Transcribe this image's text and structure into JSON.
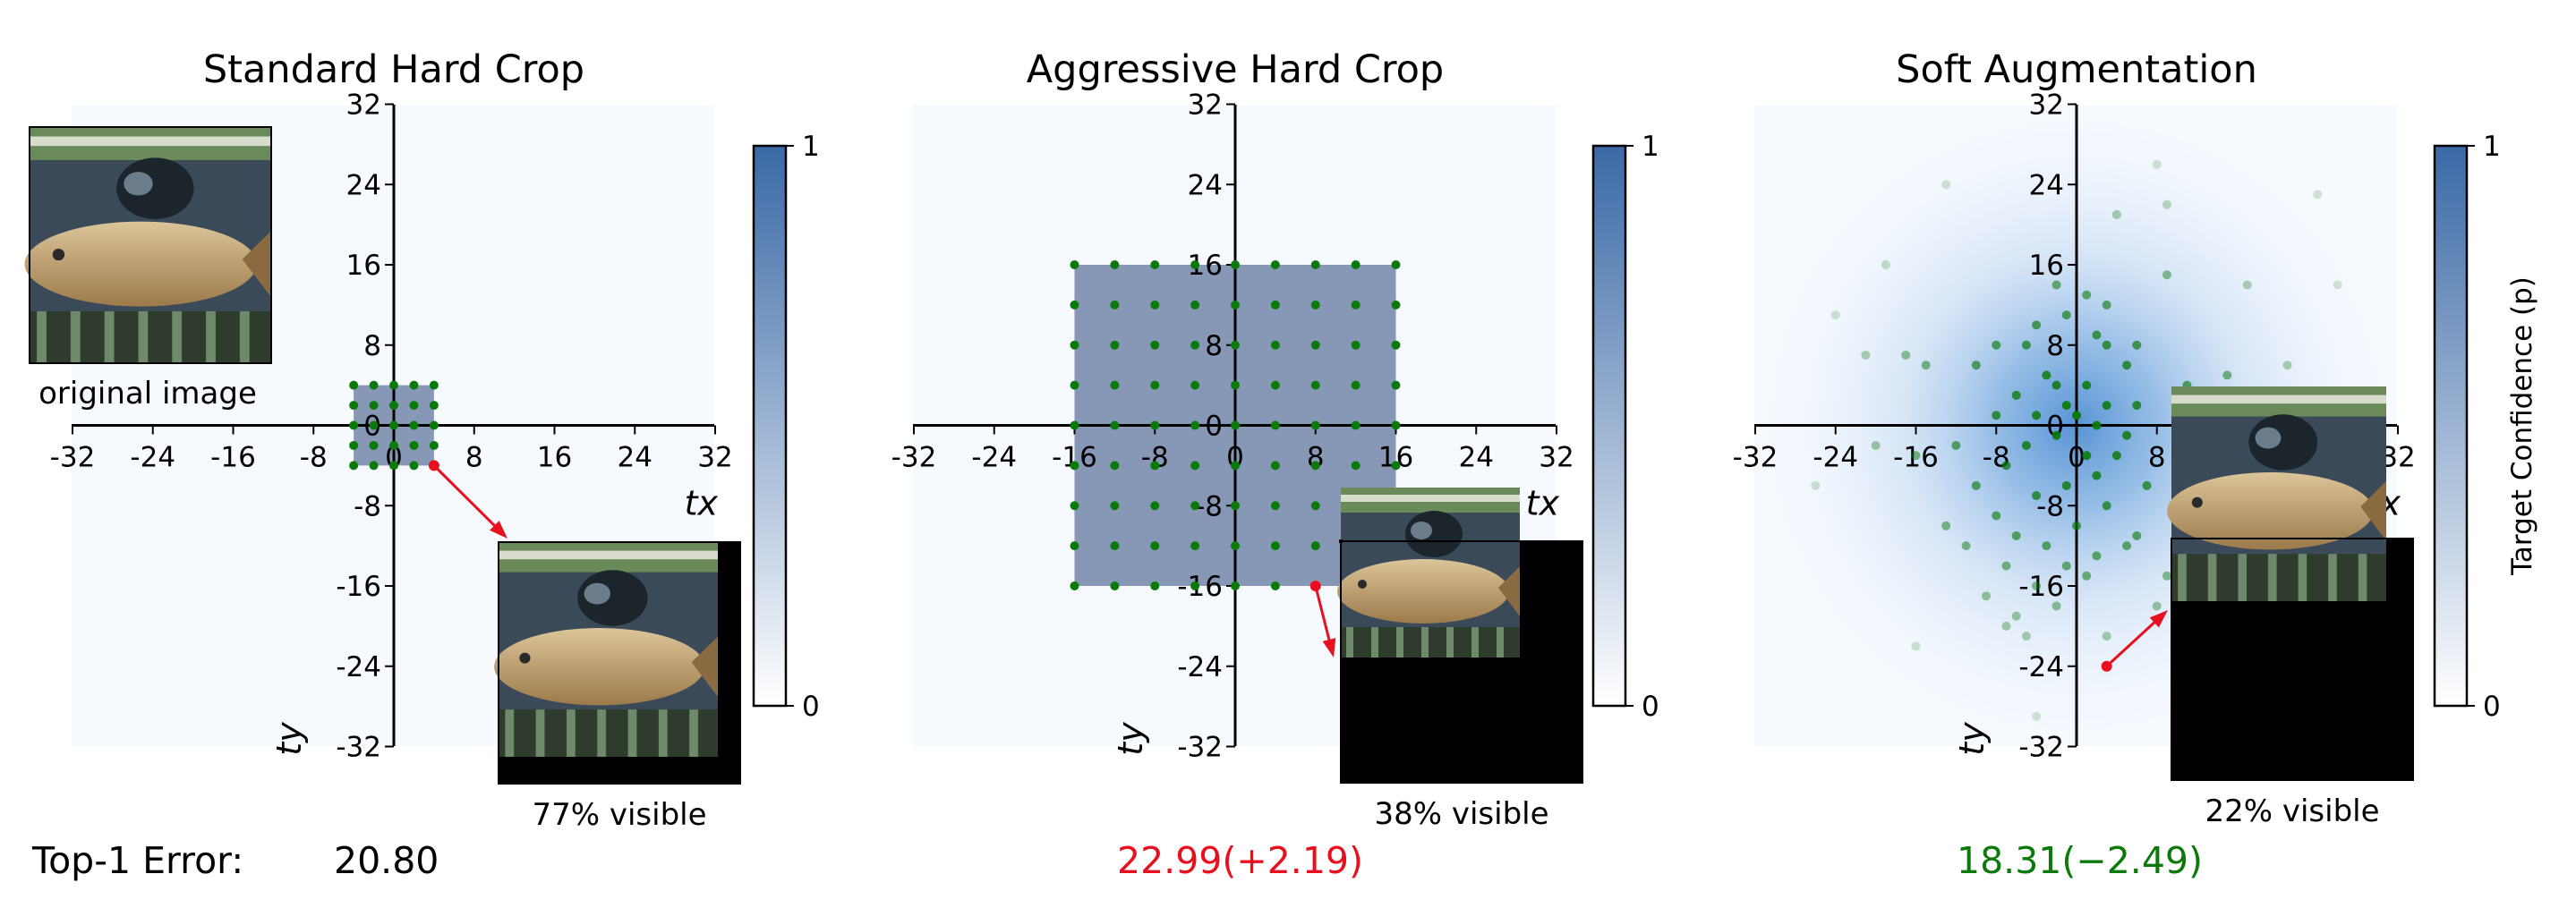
{
  "chart_data": [
    {
      "type": "scatter",
      "title": "Standard Hard Crop",
      "xlabel": "tx",
      "ylabel": "ty",
      "xlim": [
        -32,
        32
      ],
      "ylim": [
        -32,
        32
      ],
      "xticks": [
        "-32",
        "-24",
        "-16",
        "-8",
        "0",
        "8",
        "16",
        "24",
        "32"
      ],
      "yticks": [
        "32",
        "24",
        "16",
        "8",
        "0",
        "-8",
        "-16",
        "-24",
        "-32"
      ],
      "shaded_region": {
        "x": [
          -4,
          4
        ],
        "y": [
          -4,
          4
        ],
        "confidence": 1
      },
      "grid_points": {
        "x_range": [
          -4,
          4
        ],
        "y_range": [
          -4,
          4
        ],
        "step": 2,
        "color": "#0b7a0b"
      },
      "selected_point": {
        "x": 4,
        "y": -4,
        "color": "#e8101e"
      },
      "inset_caption": "77% visible",
      "extra_caption": "original image",
      "colorbar": {
        "min_label": "0",
        "max_label": "1",
        "label": ""
      }
    },
    {
      "type": "scatter",
      "title": "Aggressive Hard Crop",
      "xlabel": "tx",
      "ylabel": "ty",
      "xlim": [
        -32,
        32
      ],
      "ylim": [
        -32,
        32
      ],
      "xticks": [
        "-32",
        "-24",
        "-16",
        "-8",
        "0",
        "8",
        "16",
        "24",
        "32"
      ],
      "yticks": [
        "32",
        "24",
        "16",
        "8",
        "0",
        "-8",
        "-16",
        "-24",
        "-32"
      ],
      "shaded_region": {
        "x": [
          -16,
          16
        ],
        "y": [
          -16,
          16
        ],
        "confidence": 1
      },
      "grid_points": {
        "x_range": [
          -16,
          16
        ],
        "y_range": [
          -16,
          16
        ],
        "step": 4,
        "color": "#0b7a0b"
      },
      "selected_point": {
        "x": 8,
        "y": -16,
        "color": "#e8101e"
      },
      "inset_caption": "38% visible",
      "colorbar": {
        "min_label": "0",
        "max_label": "1",
        "label": ""
      }
    },
    {
      "type": "heatmap",
      "title": "Soft Augmentation",
      "xlabel": "tx",
      "ylabel": "ty",
      "xlim": [
        -32,
        32
      ],
      "ylim": [
        -32,
        32
      ],
      "xticks": [
        "-32",
        "-24",
        "-16",
        "-8",
        "0",
        "8",
        "16",
        "24",
        "32"
      ],
      "yticks": [
        "32",
        "24",
        "16",
        "8",
        "0",
        "-8",
        "-16",
        "-24",
        "-32"
      ],
      "distribution": "2D Gaussian centered at (0, 0)",
      "samples_color": "#0b7a0b",
      "samples": [
        [
          -2,
          14
        ],
        [
          1,
          13
        ],
        [
          -1,
          11
        ],
        [
          3,
          12
        ],
        [
          -4,
          10
        ],
        [
          2,
          9
        ],
        [
          -8,
          8
        ],
        [
          -5,
          8
        ],
        [
          3,
          8
        ],
        [
          6,
          8
        ],
        [
          -10,
          6
        ],
        [
          -3,
          5
        ],
        [
          5,
          6
        ],
        [
          -2,
          4
        ],
        [
          1,
          4
        ],
        [
          -6,
          3
        ],
        [
          -1,
          2
        ],
        [
          3,
          2
        ],
        [
          -4,
          1
        ],
        [
          0,
          1
        ],
        [
          6,
          2
        ],
        [
          -8,
          1
        ],
        [
          2,
          0
        ],
        [
          -2,
          -1
        ],
        [
          5,
          -1
        ],
        [
          -12,
          -2
        ],
        [
          -5,
          -2
        ],
        [
          1,
          -3
        ],
        [
          4,
          -3
        ],
        [
          -7,
          -4
        ],
        [
          2,
          -5
        ],
        [
          -1,
          -6
        ],
        [
          -10,
          -6
        ],
        [
          7,
          -6
        ],
        [
          -4,
          -7
        ],
        [
          3,
          -8
        ],
        [
          -8,
          -9
        ],
        [
          0,
          -10
        ],
        [
          -6,
          -11
        ],
        [
          6,
          -11
        ],
        [
          -3,
          -12
        ],
        [
          2,
          -13
        ],
        [
          -11,
          -12
        ],
        [
          -7,
          -14
        ],
        [
          1,
          -15
        ],
        [
          -4,
          -16
        ],
        [
          9,
          -15
        ],
        [
          -9,
          -17
        ],
        [
          -2,
          -18
        ],
        [
          -6,
          -19
        ],
        [
          -13,
          -10
        ],
        [
          10,
          -10
        ],
        [
          -16,
          -3
        ],
        [
          -20,
          -2
        ],
        [
          12,
          -4
        ],
        [
          -15,
          6
        ],
        [
          14,
          -4
        ],
        [
          -17,
          7
        ],
        [
          15,
          5
        ],
        [
          11,
          4
        ],
        [
          -21,
          7
        ],
        [
          -24,
          11
        ],
        [
          21,
          6
        ],
        [
          23,
          -1
        ],
        [
          9,
          15
        ],
        [
          17,
          14
        ],
        [
          -19,
          16
        ],
        [
          26,
          14
        ],
        [
          4,
          21
        ],
        [
          9,
          22
        ],
        [
          -13,
          24
        ],
        [
          8,
          26
        ],
        [
          24,
          23
        ],
        [
          28,
          3
        ],
        [
          -7,
          -20
        ],
        [
          -5,
          -21
        ],
        [
          -26,
          -6
        ],
        [
          -16,
          -22
        ],
        [
          11,
          -22
        ],
        [
          -4,
          -29
        ],
        [
          5,
          -12
        ],
        [
          -1,
          -14
        ],
        [
          3,
          -21
        ],
        [
          8,
          -18
        ]
      ],
      "selected_point": {
        "x": 3,
        "y": -24,
        "color": "#e8101e"
      },
      "inset_caption": "22% visible",
      "colorbar": {
        "min_label": "0",
        "max_label": "1",
        "label": "Target Confidence (p)"
      }
    }
  ],
  "footer": {
    "label": "Top-1 Error:",
    "values": [
      "20.80",
      "22.99(+2.19)",
      "18.31(−2.49)"
    ],
    "colors": [
      "#000000",
      "#e8101e",
      "#0b7a0b"
    ]
  },
  "colors": {
    "region_fill": "#8797b6",
    "colorbar_dark": "#3a69a6",
    "heat_center": "#4f8ed2"
  }
}
